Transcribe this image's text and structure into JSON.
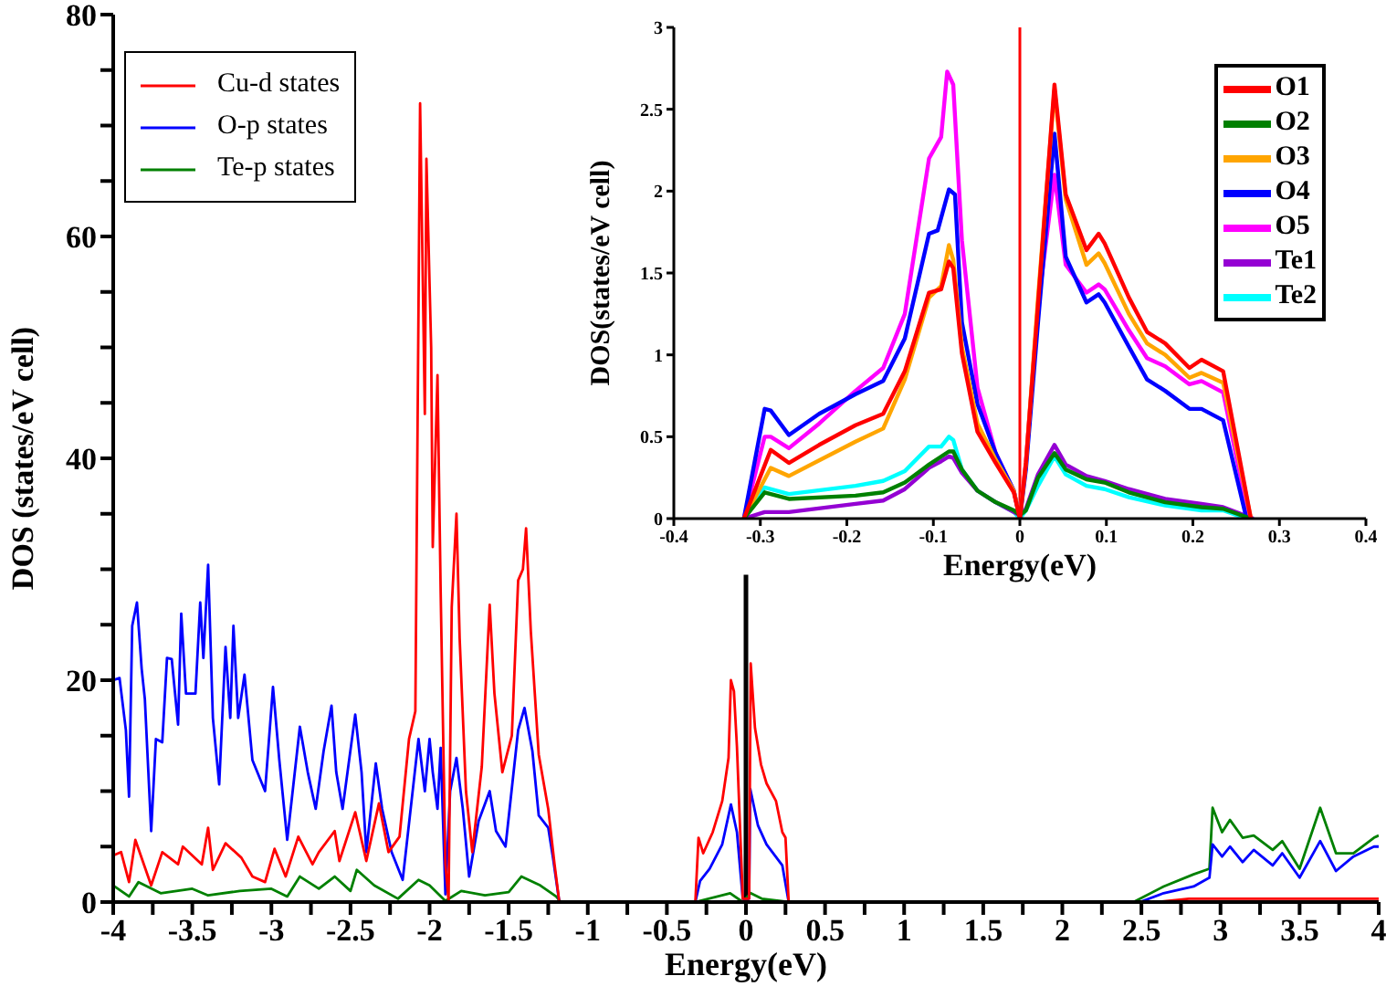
{
  "chart_data": [
    {
      "type": "line",
      "xlabel": "Energy(eV)",
      "ylabel": "DOS (states/eV cell)",
      "xlim": [
        -4,
        4
      ],
      "ylim": [
        0,
        80
      ],
      "xticks": [
        -4,
        {
          "value": -3.75,
          "label": null
        },
        -3.5,
        {
          "value": -3.25,
          "label": null
        },
        -3,
        {
          "value": -2.75,
          "label": null
        },
        -2.5,
        {
          "value": -2.25,
          "label": null
        },
        -2,
        {
          "value": -1.75,
          "label": null
        },
        -1.5,
        {
          "value": -1.25,
          "label": null
        },
        -1,
        {
          "value": -0.75,
          "label": null
        },
        -0.5,
        {
          "value": -0.25,
          "label": null
        },
        0,
        {
          "value": 0.25,
          "label": null
        },
        0.5,
        {
          "value": 0.75,
          "label": null
        },
        1,
        {
          "value": 1.25,
          "label": null
        },
        1.5,
        {
          "value": 1.75,
          "label": null
        },
        2,
        {
          "value": 2.25,
          "label": null
        },
        2.5,
        {
          "value": 2.75,
          "label": null
        },
        3,
        {
          "value": 3.25,
          "label": null
        },
        3.5,
        {
          "value": 3.75,
          "label": null
        },
        4
      ],
      "yticks": [
        0,
        {
          "value": 5,
          "label": null
        },
        {
          "value": 10,
          "label": null
        },
        {
          "value": 15,
          "label": null
        },
        20,
        {
          "value": 25,
          "label": null
        },
        {
          "value": 30,
          "label": null
        },
        {
          "value": 35,
          "label": null
        },
        40,
        {
          "value": 45,
          "label": null
        },
        {
          "value": 50,
          "label": null
        },
        {
          "value": 55,
          "label": null
        },
        60,
        {
          "value": 65,
          "label": null
        },
        {
          "value": 70,
          "label": null
        },
        {
          "value": 75,
          "label": null
        },
        80
      ],
      "legend": "top left",
      "marker": "none",
      "series": [
        {
          "name": "Cu-d states",
          "color": "#ff0000",
          "x": [
            -4,
            -3.95,
            -3.9,
            -3.86,
            -3.76,
            -3.69,
            -3.59,
            -3.56,
            -3.44,
            -3.4,
            -3.37,
            -3.29,
            -3.19,
            -3.12,
            -3.04,
            -2.98,
            -2.91,
            -2.83,
            -2.74,
            -2.7,
            -2.6,
            -2.57,
            -2.47,
            -2.4,
            -2.32,
            -2.26,
            -2.19,
            -2.13,
            -2.09,
            -2.06,
            -2.03,
            -2.02,
            -1.99,
            -1.98,
            -1.95,
            -1.93,
            -1.9,
            -1.88,
            -1.86,
            -1.83,
            -1.81,
            -1.77,
            -1.73,
            -1.67,
            -1.62,
            -1.59,
            -1.54,
            -1.48,
            -1.44,
            -1.41,
            -1.39,
            -1.36,
            -1.31,
            -1.25,
            -1.21,
            -1.18,
            -0.32,
            -0.3,
            -0.27,
            -0.21,
            -0.15,
            -0.11,
            -0.095,
            -0.076,
            -0.057,
            -0.02,
            0.02,
            0.03,
            0.057,
            0.095,
            0.13,
            0.19,
            0.23,
            0.25,
            0.27,
            2.6,
            2.8,
            3.5,
            4
          ],
          "values": [
            4.2,
            4.5,
            1.8,
            5.6,
            1.5,
            4.5,
            3.4,
            5,
            3.4,
            6.7,
            2.9,
            5.3,
            4,
            2.3,
            1.8,
            4.8,
            2.3,
            5.9,
            3.4,
            4.5,
            6.4,
            3.7,
            8.1,
            3.7,
            8.9,
            4.5,
            5.9,
            14.7,
            17.2,
            72,
            44,
            67,
            50,
            32,
            47.5,
            28,
            3.4,
            0.1,
            26.6,
            35,
            23.8,
            10,
            4.5,
            12.2,
            26.8,
            18.8,
            11.7,
            15,
            29,
            30,
            33.7,
            24.4,
            13.3,
            8.4,
            3.4,
            0,
            0,
            5.8,
            4.4,
            6.3,
            9.1,
            13,
            20,
            19,
            14,
            0.3,
            0.3,
            21.5,
            15.7,
            12.4,
            10.7,
            9.1,
            6.3,
            5.8,
            0,
            0,
            0.3,
            0.3,
            0.3
          ]
        },
        {
          "name": "O-p states",
          "color": "#0000ff",
          "x": [
            -4,
            -3.96,
            -3.92,
            -3.9,
            -3.88,
            -3.85,
            -3.82,
            -3.8,
            -3.76,
            -3.73,
            -3.69,
            -3.66,
            -3.63,
            -3.59,
            -3.57,
            -3.54,
            -3.48,
            -3.45,
            -3.43,
            -3.4,
            -3.37,
            -3.33,
            -3.29,
            -3.26,
            -3.24,
            -3.21,
            -3.17,
            -3.12,
            -3.04,
            -2.99,
            -2.95,
            -2.9,
            -2.82,
            -2.77,
            -2.72,
            -2.67,
            -2.62,
            -2.59,
            -2.55,
            -2.47,
            -2.43,
            -2.4,
            -2.34,
            -2.3,
            -2.24,
            -2.17,
            -2.07,
            -2.03,
            -2,
            -1.98,
            -1.95,
            -1.93,
            -1.9,
            -1.87,
            -1.83,
            -1.79,
            -1.75,
            -1.69,
            -1.62,
            -1.58,
            -1.52,
            -1.44,
            -1.4,
            -1.35,
            -1.31,
            -1.25,
            -1.22,
            -1.18,
            -0.32,
            -0.29,
            -0.23,
            -0.15,
            -0.095,
            -0.057,
            -0.02,
            0.02,
            0.027,
            0.076,
            0.13,
            0.23,
            0.27,
            2.49,
            2.64,
            2.83,
            2.93,
            2.95,
            3.01,
            3.06,
            3.14,
            3.21,
            3.33,
            3.39,
            3.5,
            3.63,
            3.73,
            3.84,
            3.97,
            4
          ],
          "values": [
            20,
            20.2,
            15.5,
            9.5,
            24.9,
            27,
            21,
            18.3,
            6.4,
            14.7,
            14.4,
            22,
            21.9,
            16,
            26,
            18.8,
            18.8,
            27,
            22,
            30.4,
            16.6,
            10.6,
            23,
            16.6,
            24.9,
            16.6,
            20.5,
            12.8,
            10,
            19.4,
            12.8,
            5.6,
            15.8,
            11.7,
            8.4,
            13.6,
            17.7,
            11.7,
            8.4,
            16.9,
            11.7,
            4.5,
            12.5,
            8.4,
            4.5,
            2,
            14.7,
            10,
            14.7,
            11.7,
            8.4,
            13.9,
            0.7,
            10,
            13,
            8.4,
            2.3,
            7.3,
            10,
            6.4,
            5,
            15.5,
            17.5,
            13.6,
            7.8,
            6.7,
            4,
            0,
            0,
            1.9,
            3,
            5.2,
            8.8,
            6.3,
            0.3,
            0.3,
            10.2,
            6.9,
            5.2,
            3.3,
            0,
            0,
            0.8,
            1.4,
            2.2,
            5.2,
            4.1,
            5,
            3.6,
            4.7,
            3.3,
            4.4,
            2.2,
            5.5,
            2.8,
            4.1,
            5,
            5
          ]
        },
        {
          "name": "Te-p states",
          "color": "#008000",
          "x": [
            -4,
            -3.9,
            -3.84,
            -3.7,
            -3.5,
            -3.4,
            -3.2,
            -3,
            -2.9,
            -2.82,
            -2.7,
            -2.6,
            -2.5,
            -2.46,
            -2.35,
            -2.2,
            -2.07,
            -2,
            -1.9,
            -1.8,
            -1.65,
            -1.5,
            -1.42,
            -1.3,
            -1.2,
            -1.17,
            -0.32,
            -0.1,
            -0.02,
            0.03,
            0.1,
            0.27,
            2.45,
            2.64,
            2.83,
            2.93,
            2.95,
            3.01,
            3.06,
            3.14,
            3.21,
            3.33,
            3.39,
            3.5,
            3.63,
            3.73,
            3.84,
            3.97,
            4
          ],
          "values": [
            1.5,
            0.5,
            1.8,
            0.8,
            1.2,
            0.6,
            1,
            1.2,
            0.5,
            2.3,
            1.2,
            2.3,
            1,
            2.9,
            1.5,
            0.3,
            2,
            1.5,
            0.1,
            1,
            0.6,
            0.9,
            2.3,
            1.5,
            0.5,
            0,
            0,
            0.8,
            0,
            0.8,
            0.3,
            0,
            0,
            1.4,
            2.5,
            3,
            8.5,
            6.3,
            7.4,
            5.8,
            6,
            4.7,
            5.5,
            3,
            8.5,
            4.4,
            4.4,
            5.8,
            6
          ]
        },
        {
          "color": "#000000",
          "x": [
            0,
            0
          ],
          "values": [
            0,
            29.5
          ]
        }
      ]
    },
    {
      "type": "line",
      "xlabel": "Energy(eV)",
      "ylabel": "DOS(states/eV cell)",
      "xlim": [
        -0.4,
        0.4
      ],
      "ylim": [
        0,
        3
      ],
      "xticks": [
        -0.4,
        -0.3,
        -0.2,
        -0.1,
        0,
        0.1,
        0.2,
        0.3,
        0.4
      ],
      "yticks": [
        0,
        0.5,
        1,
        1.5,
        2,
        2.5,
        3
      ],
      "legend": "top right",
      "marker": "none",
      "ref_lines": [
        {
          "axis": "x",
          "value": 0,
          "color": "#ff0000"
        }
      ],
      "series": [
        {
          "name": "O1",
          "color": "#ff0000",
          "x": [
            -0.319,
            -0.288,
            -0.267,
            -0.232,
            -0.19,
            -0.158,
            -0.133,
            -0.105,
            -0.091,
            -0.082,
            -0.077,
            -0.067,
            -0.049,
            -0.028,
            -0.007,
            0,
            0.007,
            0.021,
            0.04,
            0.053,
            0.077,
            0.091,
            0.098,
            0.126,
            0.147,
            0.168,
            0.196,
            0.21,
            0.235,
            0.267
          ],
          "values": [
            0,
            0.42,
            0.34,
            0.45,
            0.57,
            0.64,
            0.9,
            1.38,
            1.4,
            1.57,
            1.53,
            1.01,
            0.53,
            0.34,
            0.16,
            0,
            0.34,
            1.31,
            2.65,
            1.98,
            1.64,
            1.74,
            1.68,
            1.35,
            1.14,
            1.07,
            0.92,
            0.97,
            0.9,
            0
          ]
        },
        {
          "name": "O2",
          "color": "#008000",
          "x": [
            -0.319,
            -0.295,
            -0.267,
            -0.19,
            -0.158,
            -0.133,
            -0.105,
            -0.082,
            -0.077,
            -0.067,
            -0.049,
            -0.028,
            -0.007,
            0,
            0.007,
            0.021,
            0.04,
            0.053,
            0.077,
            0.098,
            0.126,
            0.168,
            0.21,
            0.235,
            0.267
          ],
          "values": [
            0,
            0.16,
            0.12,
            0.14,
            0.16,
            0.22,
            0.33,
            0.41,
            0.41,
            0.3,
            0.17,
            0.1,
            0.05,
            0.02,
            0.05,
            0.25,
            0.4,
            0.3,
            0.24,
            0.22,
            0.16,
            0.1,
            0.07,
            0.06,
            0
          ]
        },
        {
          "name": "O3",
          "color": "#ffa500",
          "x": [
            -0.319,
            -0.288,
            -0.267,
            -0.19,
            -0.158,
            -0.133,
            -0.105,
            -0.091,
            -0.082,
            -0.077,
            -0.067,
            -0.049,
            -0.028,
            -0.007,
            0,
            0.007,
            0.021,
            0.04,
            0.053,
            0.077,
            0.091,
            0.098,
            0.126,
            0.147,
            0.168,
            0.196,
            0.21,
            0.235,
            0.267
          ],
          "values": [
            0,
            0.31,
            0.26,
            0.47,
            0.55,
            0.85,
            1.35,
            1.42,
            1.67,
            1.58,
            1.05,
            0.58,
            0.36,
            0.17,
            0,
            0.34,
            1.35,
            2.62,
            1.95,
            1.55,
            1.62,
            1.56,
            1.25,
            1.07,
            1,
            0.86,
            0.89,
            0.83,
            0
          ]
        },
        {
          "name": "O4",
          "color": "#0000ff",
          "x": [
            -0.319,
            -0.295,
            -0.288,
            -0.267,
            -0.232,
            -0.19,
            -0.158,
            -0.133,
            -0.105,
            -0.095,
            -0.082,
            -0.075,
            -0.067,
            -0.049,
            -0.028,
            -0.007,
            0,
            0.007,
            0.021,
            0.04,
            0.053,
            0.077,
            0.091,
            0.098,
            0.126,
            0.147,
            0.168,
            0.196,
            0.21,
            0.235,
            0.262
          ],
          "values": [
            0,
            0.67,
            0.66,
            0.51,
            0.64,
            0.76,
            0.84,
            1.1,
            1.74,
            1.76,
            2.01,
            1.98,
            1.2,
            0.7,
            0.4,
            0.17,
            0,
            0.3,
            1.2,
            2.35,
            1.6,
            1.32,
            1.37,
            1.32,
            1.05,
            0.85,
            0.78,
            0.67,
            0.67,
            0.6,
            0
          ]
        },
        {
          "name": "O5",
          "color": "#ff00ff",
          "x": [
            -0.319,
            -0.295,
            -0.288,
            -0.267,
            -0.232,
            -0.19,
            -0.158,
            -0.133,
            -0.105,
            -0.091,
            -0.084,
            -0.077,
            -0.067,
            -0.049,
            -0.028,
            -0.007,
            0,
            0.007,
            0.021,
            0.04,
            0.053,
            0.077,
            0.091,
            0.098,
            0.126,
            0.147,
            0.168,
            0.196,
            0.21,
            0.235,
            0.265
          ],
          "values": [
            0,
            0.5,
            0.5,
            0.43,
            0.58,
            0.78,
            0.92,
            1.25,
            2.2,
            2.33,
            2.73,
            2.65,
            1.7,
            0.8,
            0.4,
            0.17,
            0,
            0.35,
            1.3,
            2.1,
            1.55,
            1.38,
            1.43,
            1.4,
            1.15,
            0.98,
            0.93,
            0.82,
            0.84,
            0.77,
            0
          ]
        },
        {
          "name": "Te1",
          "color": "#9400d3",
          "x": [
            -0.319,
            -0.295,
            -0.267,
            -0.19,
            -0.158,
            -0.133,
            -0.105,
            -0.091,
            -0.082,
            -0.077,
            -0.067,
            -0.049,
            -0.028,
            -0.007,
            0,
            0.007,
            0.021,
            0.04,
            0.053,
            0.077,
            0.098,
            0.126,
            0.168,
            0.21,
            0.235,
            0.27
          ],
          "values": [
            0,
            0.04,
            0.04,
            0.09,
            0.11,
            0.18,
            0.31,
            0.35,
            0.38,
            0.37,
            0.28,
            0.17,
            0.1,
            0.04,
            0.02,
            0.06,
            0.27,
            0.45,
            0.33,
            0.26,
            0.23,
            0.18,
            0.12,
            0.09,
            0.07,
            0
          ]
        },
        {
          "name": "Te2",
          "color": "#00ffff",
          "x": [
            -0.319,
            -0.295,
            -0.267,
            -0.19,
            -0.158,
            -0.133,
            -0.105,
            -0.091,
            -0.082,
            -0.077,
            -0.067,
            -0.049,
            -0.028,
            -0.007,
            0,
            0.007,
            0.021,
            0.04,
            0.053,
            0.077,
            0.098,
            0.126,
            0.168,
            0.21,
            0.235,
            0.262
          ],
          "values": [
            0,
            0.19,
            0.15,
            0.2,
            0.23,
            0.29,
            0.44,
            0.44,
            0.5,
            0.48,
            0.3,
            0.17,
            0.1,
            0.04,
            0,
            0.05,
            0.2,
            0.38,
            0.27,
            0.2,
            0.18,
            0.13,
            0.08,
            0.05,
            0.05,
            0
          ]
        }
      ]
    }
  ]
}
